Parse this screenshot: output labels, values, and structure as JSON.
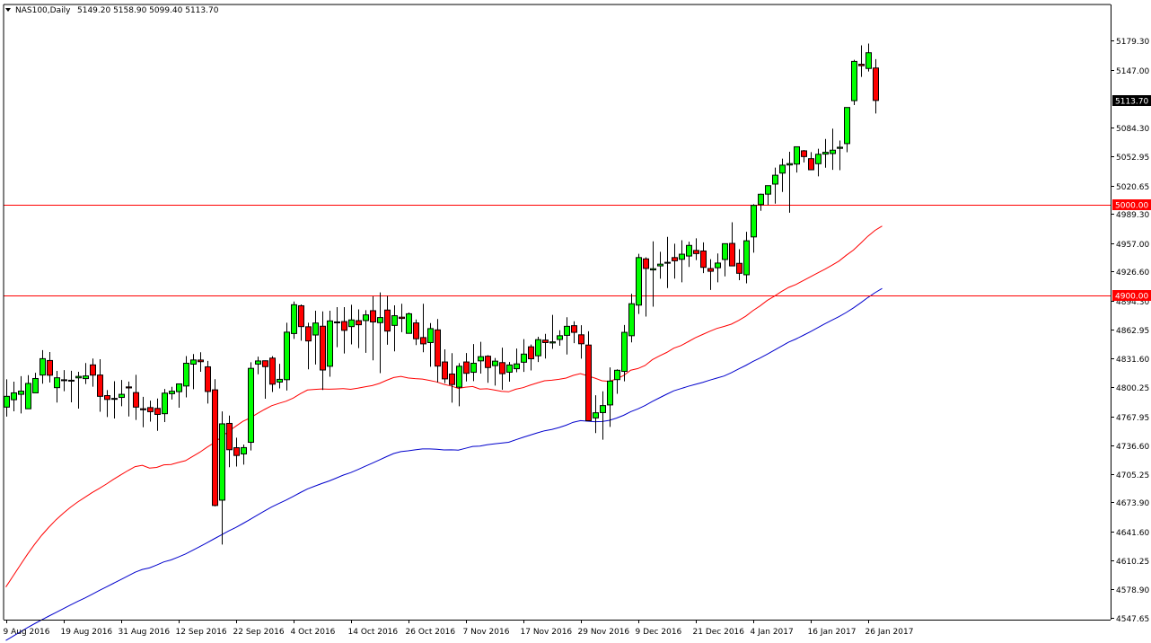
{
  "header": {
    "symbol": "NAS100,Daily",
    "ohlc": "5149.20 5158.90 5099.40 5113.70"
  },
  "chart_data": {
    "type": "candlestick",
    "symbol": "NAS100",
    "timeframe": "Daily",
    "ylim": [
      4547.65,
      5195.1
    ],
    "y_ticks": [
      "5179.30",
      "5147.00",
      "5084.30",
      "5052.95",
      "5020.65",
      "4989.30",
      "4957.00",
      "4926.60",
      "4894.30",
      "4862.95",
      "4831.60",
      "4800.25",
      "4767.95",
      "4736.60",
      "4705.25",
      "4673.90",
      "4641.60",
      "4610.25",
      "4578.90",
      "4547.65"
    ],
    "x_ticks": [
      {
        "index": 0,
        "label": "9 Aug 2016"
      },
      {
        "index": 8,
        "label": "19 Aug 2016"
      },
      {
        "index": 16,
        "label": "31 Aug 2016"
      },
      {
        "index": 24,
        "label": "12 Sep 2016"
      },
      {
        "index": 32,
        "label": "22 Sep 2016"
      },
      {
        "index": 40,
        "label": "4 Oct 2016"
      },
      {
        "index": 48,
        "label": "14 Oct 2016"
      },
      {
        "index": 56,
        "label": "26 Oct 2016"
      },
      {
        "index": 64,
        "label": "7 Nov 2016"
      },
      {
        "index": 72,
        "label": "17 Nov 2016"
      },
      {
        "index": 80,
        "label": "29 Nov 2016"
      },
      {
        "index": 88,
        "label": "9 Dec 2016"
      },
      {
        "index": 96,
        "label": "21 Dec 2016"
      },
      {
        "index": 104,
        "label": "4 Jan 2017"
      },
      {
        "index": 112,
        "label": "16 Jan 2017"
      },
      {
        "index": 120,
        "label": "26 Jan 2017"
      }
    ],
    "grid": false,
    "horizontal_lines": [
      {
        "value": 5000.0,
        "label": "5000.00",
        "color": "#ff0000"
      },
      {
        "value": 4900.0,
        "label": "4900.00",
        "color": "#ff0000"
      }
    ],
    "current_price": {
      "value": 5113.7,
      "label": "5113.70"
    },
    "moving_averages": [
      {
        "color": "#ff0000",
        "values": [
          4581.3,
          4593.3,
          4605.2,
          4617.1,
          4628.0,
          4638.0,
          4646.9,
          4655.0,
          4662.1,
          4668.6,
          4674.4,
          4679.5,
          4684.6,
          4689.2,
          4694.0,
          4699.2,
          4704.1,
          4708.8,
          4713.1,
          4714.6,
          4711.5,
          4712.2,
          4715.1,
          4715.5,
          4717.6,
          4719.6,
          4724.2,
          4728.8,
          4734.2,
          4739.2,
          4745.2,
          4751.6,
          4757.2,
          4762.6,
          4766.3,
          4771.1,
          4775.6,
          4779.7,
          4782.3,
          4784.6,
          4788.1,
          4792.9,
          4796.9,
          4797.6,
          4798.1,
          4797.8,
          4798.1,
          4798.5,
          4797.7,
          4798.9,
          4800.3,
          4801.7,
          4804.1,
          4807.5,
          4810.6,
          4811.8,
          4810.1,
          4809.4,
          4808.9,
          4807.4,
          4805.7,
          4803.1,
          4801.3,
          4798.7,
          4800.0,
          4800.7,
          4798.0,
          4798.3,
          4796.9,
          4795.5,
          4794.9,
          4797.8,
          4799.5,
          4802.2,
          4804.7,
          4807.0,
          4807.6,
          4808.6,
          4810.0,
          4812.9,
          4814.9,
          4812.4,
          4810.0,
          4807.0,
          4806.4,
          4809.0,
          4812.7,
          4818.6,
          4820.4,
          4823.7,
          4830.0,
          4834.2,
          4838.0,
          4842.7,
          4845.5,
          4849.8,
          4854.1,
          4857.6,
          4861.2,
          4864.3,
          4866.5,
          4868.9,
          4872.9,
          4877.6,
          4883.7,
          4888.9,
          4894.9,
          4899.6,
          4904.7,
          4909.2,
          4912.3,
          4916.5,
          4920.7,
          4924.8,
          4928.9,
          4933.4,
          4938.0,
          4944.3,
          4950.0,
          4957.3,
          4965.0,
          4971.5,
          4976.3
        ]
      },
      {
        "color": "#0000cc",
        "values": [
          4522.9,
          4527.6,
          4532.2,
          4536.9,
          4541.3,
          4545.5,
          4549.6,
          4553.6,
          4557.7,
          4561.7,
          4565.6,
          4569.4,
          4573.4,
          4577.5,
          4581.4,
          4585.5,
          4589.5,
          4593.5,
          4597.6,
          4600.6,
          4602.3,
          4605.4,
          4608.9,
          4611.0,
          4614.2,
          4617.5,
          4621.5,
          4625.6,
          4629.8,
          4634.1,
          4638.3,
          4642.7,
          4646.5,
          4650.8,
          4655.3,
          4659.9,
          4664.5,
          4668.9,
          4672.7,
          4676.5,
          4680.5,
          4684.7,
          4688.7,
          4691.7,
          4694.6,
          4697.4,
          4700.5,
          4703.9,
          4706.5,
          4709.9,
          4713.4,
          4716.8,
          4720.4,
          4724.0,
          4727.4,
          4729.5,
          4730.4,
          4731.5,
          4732.5,
          4732.5,
          4732.2,
          4731.4,
          4731.5,
          4731.2,
          4733.1,
          4735.2,
          4735.6,
          4737.1,
          4738.1,
          4738.8,
          4739.7,
          4742.5,
          4745.1,
          4747.6,
          4750.0,
          4752.3,
          4753.8,
          4755.8,
          4758.4,
          4761.6,
          4763.4,
          4762.8,
          4762.2,
          4762.4,
          4763.7,
          4766.2,
          4769.2,
          4773.2,
          4776.3,
          4779.9,
          4784.3,
          4788.4,
          4792.3,
          4796.0,
          4798.5,
          4800.9,
          4803.1,
          4805.2,
          4807.7,
          4810.0,
          4812.2,
          4815.8,
          4819.9,
          4823.7,
          4828.0,
          4831.9,
          4836.1,
          4840.5,
          4844.9,
          4849.4,
          4852.7,
          4856.6,
          4860.7,
          4864.9,
          4869.2,
          4873.2,
          4877.2,
          4881.7,
          4886.7,
          4892.2,
          4898.0,
          4903.3,
          4908.0
        ]
      }
    ],
    "candles": [
      {
        "o": 4778.2,
        "h": 4808.6,
        "l": 4767.9,
        "c": 4790.0
      },
      {
        "o": 4786.3,
        "h": 4806.0,
        "l": 4773.6,
        "c": 4793.8
      },
      {
        "o": 4792.2,
        "h": 4812.0,
        "l": 4771.3,
        "c": 4795.7
      },
      {
        "o": 4776.4,
        "h": 4813.2,
        "l": 4781.6,
        "c": 4804.1
      },
      {
        "o": 4793.8,
        "h": 4815.8,
        "l": 4794.1,
        "c": 4809.5
      },
      {
        "o": 4813.3,
        "h": 4840.6,
        "l": 4803.8,
        "c": 4831.2
      },
      {
        "o": 4829.2,
        "h": 4838.5,
        "l": 4805.2,
        "c": 4813.1
      },
      {
        "o": 4799.5,
        "h": 4817.8,
        "l": 4783.2,
        "c": 4810.3
      },
      {
        "o": 4807.6,
        "h": 4818.7,
        "l": 4795.6,
        "c": 4808.1
      },
      {
        "o": 4807.5,
        "h": 4818.0,
        "l": 4783.4,
        "c": 4807.6
      },
      {
        "o": 4810.2,
        "h": 4816.9,
        "l": 4776.6,
        "c": 4811.8
      },
      {
        "o": 4809.4,
        "h": 4826.4,
        "l": 4803.5,
        "c": 4812.3
      },
      {
        "o": 4824.4,
        "h": 4831.3,
        "l": 4800.5,
        "c": 4813.2
      },
      {
        "o": 4813.3,
        "h": 4830.6,
        "l": 4773.1,
        "c": 4790.0
      },
      {
        "o": 4790.8,
        "h": 4796.8,
        "l": 4767.3,
        "c": 4786.6
      },
      {
        "o": 4786.8,
        "h": 4806.5,
        "l": 4765.8,
        "c": 4787.7
      },
      {
        "o": 4788.8,
        "h": 4807.9,
        "l": 4779.1,
        "c": 4792.2
      },
      {
        "o": 4800.3,
        "h": 4806.2,
        "l": 4768.0,
        "c": 4799.2
      },
      {
        "o": 4794.1,
        "h": 4813.5,
        "l": 4764.2,
        "c": 4778.2
      },
      {
        "o": 4776.4,
        "h": 4789.5,
        "l": 4756.2,
        "c": 4775.3
      },
      {
        "o": 4777.7,
        "h": 4785.3,
        "l": 4762.3,
        "c": 4773.2
      },
      {
        "o": 4776.8,
        "h": 4787.6,
        "l": 4752.3,
        "c": 4770.2
      },
      {
        "o": 4771.0,
        "h": 4798.0,
        "l": 4761.8,
        "c": 4793.5
      },
      {
        "o": 4792.9,
        "h": 4800.4,
        "l": 4786.5,
        "c": 4795.6
      },
      {
        "o": 4795.1,
        "h": 4803.0,
        "l": 4777.6,
        "c": 4803.6
      },
      {
        "o": 4801.3,
        "h": 4834.0,
        "l": 4788.9,
        "c": 4826.2
      },
      {
        "o": 4825.2,
        "h": 4836.3,
        "l": 4797.8,
        "c": 4829.8
      },
      {
        "o": 4829.7,
        "h": 4838.2,
        "l": 4816.9,
        "c": 4827.9
      },
      {
        "o": 4822.3,
        "h": 4828.8,
        "l": 4782.1,
        "c": 4795.3
      },
      {
        "o": 4797.1,
        "h": 4808.7,
        "l": 4669.6,
        "c": 4670.6
      },
      {
        "o": 4676.4,
        "h": 4773.5,
        "l": 4627.8,
        "c": 4759.9
      },
      {
        "o": 4760.4,
        "h": 4769.0,
        "l": 4712.5,
        "c": 4731.6
      },
      {
        "o": 4733.8,
        "h": 4744.8,
        "l": 4713.2,
        "c": 4725.3
      },
      {
        "o": 4727.0,
        "h": 4737.3,
        "l": 4715.3,
        "c": 4733.9
      },
      {
        "o": 4739.7,
        "h": 4827.3,
        "l": 4730.7,
        "c": 4820.6
      },
      {
        "o": 4825.3,
        "h": 4833.4,
        "l": 4814.1,
        "c": 4828.7
      },
      {
        "o": 4828.9,
        "h": 4829.2,
        "l": 4787.4,
        "c": 4822.5
      },
      {
        "o": 4831.8,
        "h": 4833.9,
        "l": 4794.7,
        "c": 4803.3
      },
      {
        "o": 4805.6,
        "h": 4825.6,
        "l": 4798.7,
        "c": 4808.6
      },
      {
        "o": 4808.2,
        "h": 4870.5,
        "l": 4796.4,
        "c": 4860.2
      },
      {
        "o": 4858.7,
        "h": 4893.7,
        "l": 4852.8,
        "c": 4890.2
      },
      {
        "o": 4889.1,
        "h": 4890.5,
        "l": 4850.9,
        "c": 4866.3
      },
      {
        "o": 4866.1,
        "h": 4870.5,
        "l": 4819.5,
        "c": 4850.6
      },
      {
        "o": 4857.1,
        "h": 4883.6,
        "l": 4824.8,
        "c": 4870.2
      },
      {
        "o": 4866.7,
        "h": 4882.9,
        "l": 4796.9,
        "c": 4818.8
      },
      {
        "o": 4822.9,
        "h": 4883.6,
        "l": 4811.4,
        "c": 4872.5
      },
      {
        "o": 4871.4,
        "h": 4887.6,
        "l": 4843.8,
        "c": 4871.0
      },
      {
        "o": 4871.8,
        "h": 4887.6,
        "l": 4836.9,
        "c": 4862.2
      },
      {
        "o": 4866.3,
        "h": 4890.2,
        "l": 4846.8,
        "c": 4873.6
      },
      {
        "o": 4872.8,
        "h": 4885.1,
        "l": 4842.7,
        "c": 4868.3
      },
      {
        "o": 4872.9,
        "h": 4884.3,
        "l": 4837.6,
        "c": 4879.1
      },
      {
        "o": 4883.7,
        "h": 4899.4,
        "l": 4829.4,
        "c": 4871.4
      },
      {
        "o": 4870.6,
        "h": 4903.7,
        "l": 4815.4,
        "c": 4876.2
      },
      {
        "o": 4884.4,
        "h": 4899.9,
        "l": 4846.5,
        "c": 4861.4
      },
      {
        "o": 4867.6,
        "h": 4889.5,
        "l": 4839.2,
        "c": 4878.2
      },
      {
        "o": 4876.6,
        "h": 4891.3,
        "l": 4860.2,
        "c": 4875.2
      },
      {
        "o": 4858.9,
        "h": 4881.7,
        "l": 4863.6,
        "c": 4880.3
      },
      {
        "o": 4870.3,
        "h": 4874.1,
        "l": 4846.1,
        "c": 4853.0
      },
      {
        "o": 4854.3,
        "h": 4891.3,
        "l": 4838.2,
        "c": 4847.4
      },
      {
        "o": 4848.8,
        "h": 4870.1,
        "l": 4822.4,
        "c": 4864.1
      },
      {
        "o": 4862.7,
        "h": 4874.6,
        "l": 4805.3,
        "c": 4823.1
      },
      {
        "o": 4827.6,
        "h": 4841.4,
        "l": 4804.4,
        "c": 4809.1
      },
      {
        "o": 4814.4,
        "h": 4837.2,
        "l": 4783.1,
        "c": 4802.9
      },
      {
        "o": 4800.0,
        "h": 4826.3,
        "l": 4779.2,
        "c": 4822.9
      },
      {
        "o": 4827.6,
        "h": 4837.4,
        "l": 4806.3,
        "c": 4815.2
      },
      {
        "o": 4816.3,
        "h": 4847.2,
        "l": 4806.6,
        "c": 4826.2
      },
      {
        "o": 4828.8,
        "h": 4849.6,
        "l": 4814.9,
        "c": 4833.4
      },
      {
        "o": 4833.9,
        "h": 4835.0,
        "l": 4804.8,
        "c": 4821.5
      },
      {
        "o": 4823.6,
        "h": 4831.9,
        "l": 4801.8,
        "c": 4828.5
      },
      {
        "o": 4826.9,
        "h": 4843.2,
        "l": 4797.2,
        "c": 4814.8
      },
      {
        "o": 4816.4,
        "h": 4827.5,
        "l": 4806.0,
        "c": 4824.3
      },
      {
        "o": 4820.2,
        "h": 4842.3,
        "l": 4816.3,
        "c": 4825.5
      },
      {
        "o": 4827.3,
        "h": 4852.6,
        "l": 4816.7,
        "c": 4836.2
      },
      {
        "o": 4844.2,
        "h": 4846.7,
        "l": 4818.3,
        "c": 4831.1
      },
      {
        "o": 4834.4,
        "h": 4855.2,
        "l": 4827.5,
        "c": 4852.0
      },
      {
        "o": 4851.5,
        "h": 4858.3,
        "l": 4831.4,
        "c": 4848.8
      },
      {
        "o": 4848.4,
        "h": 4879.1,
        "l": 4841.9,
        "c": 4849.6
      },
      {
        "o": 4852.2,
        "h": 4862.3,
        "l": 4845.3,
        "c": 4856.3
      },
      {
        "o": 4856.7,
        "h": 4876.5,
        "l": 4835.7,
        "c": 4866.6
      },
      {
        "o": 4867.3,
        "h": 4872.1,
        "l": 4848.2,
        "c": 4860.0
      },
      {
        "o": 4857.3,
        "h": 4867.8,
        "l": 4831.2,
        "c": 4847.5
      },
      {
        "o": 4846.1,
        "h": 4861.2,
        "l": 4765.2,
        "c": 4763.3
      },
      {
        "o": 4766.4,
        "h": 4791.2,
        "l": 4749.8,
        "c": 4772.0
      },
      {
        "o": 4772.2,
        "h": 4795.5,
        "l": 4742.5,
        "c": 4779.9
      },
      {
        "o": 4780.6,
        "h": 4821.6,
        "l": 4756.5,
        "c": 4806.7
      },
      {
        "o": 4808.3,
        "h": 4819.6,
        "l": 4792.8,
        "c": 4818.5
      },
      {
        "o": 4817.3,
        "h": 4868.1,
        "l": 4806.4,
        "c": 4860.0
      },
      {
        "o": 4856.3,
        "h": 4902.2,
        "l": 4849.0,
        "c": 4891.3
      },
      {
        "o": 4889.8,
        "h": 4945.9,
        "l": 4880.1,
        "c": 4941.8
      },
      {
        "o": 4940.4,
        "h": 4942.1,
        "l": 4877.3,
        "c": 4929.9
      },
      {
        "o": 4928.3,
        "h": 4959.6,
        "l": 4888.1,
        "c": 4929.6
      },
      {
        "o": 4932.7,
        "h": 4948.1,
        "l": 4918.6,
        "c": 4934.6
      },
      {
        "o": 4936.2,
        "h": 4964.5,
        "l": 4908.5,
        "c": 4936.6
      },
      {
        "o": 4941.8,
        "h": 4957.0,
        "l": 4918.8,
        "c": 4938.3
      },
      {
        "o": 4939.9,
        "h": 4960.8,
        "l": 4914.7,
        "c": 4945.5
      },
      {
        "o": 4943.5,
        "h": 4959.2,
        "l": 4931.6,
        "c": 4955.1
      },
      {
        "o": 4949.6,
        "h": 4962.9,
        "l": 4939.1,
        "c": 4946.2
      },
      {
        "o": 4949.0,
        "h": 4958.5,
        "l": 4924.8,
        "c": 4931.1
      },
      {
        "o": 4929.8,
        "h": 4940.0,
        "l": 4906.4,
        "c": 4926.8
      },
      {
        "o": 4930.7,
        "h": 4946.3,
        "l": 4914.7,
        "c": 4935.8
      },
      {
        "o": 4939.7,
        "h": 4957.1,
        "l": 4921.2,
        "c": 4957.0
      },
      {
        "o": 4957.3,
        "h": 4980.4,
        "l": 4934.8,
        "c": 4932.7
      },
      {
        "o": 4935.5,
        "h": 4951.0,
        "l": 4917.0,
        "c": 4924.6
      },
      {
        "o": 4923.0,
        "h": 4970.0,
        "l": 4913.6,
        "c": 4960.2
      },
      {
        "o": 4964.4,
        "h": 5000.2,
        "l": 4947.2,
        "c": 4998.9
      },
      {
        "o": 4999.8,
        "h": 5011.7,
        "l": 4992.9,
        "c": 5011.1
      },
      {
        "o": 5011.2,
        "h": 5020.1,
        "l": 4999.3,
        "c": 5020.5
      },
      {
        "o": 5022.2,
        "h": 5040.2,
        "l": 5000.8,
        "c": 5031.9
      },
      {
        "o": 5034.2,
        "h": 5050.1,
        "l": 5013.6,
        "c": 5042.9
      },
      {
        "o": 5043.1,
        "h": 5057.6,
        "l": 4990.9,
        "c": 5044.6
      },
      {
        "o": 5044.1,
        "h": 5061.6,
        "l": 5034.8,
        "c": 5063.0
      },
      {
        "o": 5058.6,
        "h": 5059.5,
        "l": 5045.9,
        "c": 5052.3
      },
      {
        "o": 5050.0,
        "h": 5057.2,
        "l": 5037.5,
        "c": 5037.9
      },
      {
        "o": 5044.5,
        "h": 5060.9,
        "l": 5030.6,
        "c": 5054.8
      },
      {
        "o": 5055.0,
        "h": 5071.5,
        "l": 5040.1,
        "c": 5057.0
      },
      {
        "o": 5055.6,
        "h": 5082.8,
        "l": 5037.8,
        "c": 5059.3
      },
      {
        "o": 5061.3,
        "h": 5069.8,
        "l": 5037.4,
        "c": 5062.5
      },
      {
        "o": 5066.5,
        "h": 5104.5,
        "l": 5057.1,
        "c": 5106.0
      },
      {
        "o": 5113.5,
        "h": 5158.1,
        "l": 5108.6,
        "c": 5156.4
      },
      {
        "o": 5153.3,
        "h": 5174.0,
        "l": 5139.5,
        "c": 5151.7
      },
      {
        "o": 5148.7,
        "h": 5175.9,
        "l": 5145.4,
        "c": 5165.9
      },
      {
        "o": 5149.2,
        "h": 5158.9,
        "l": 5099.4,
        "c": 5113.7
      }
    ]
  }
}
